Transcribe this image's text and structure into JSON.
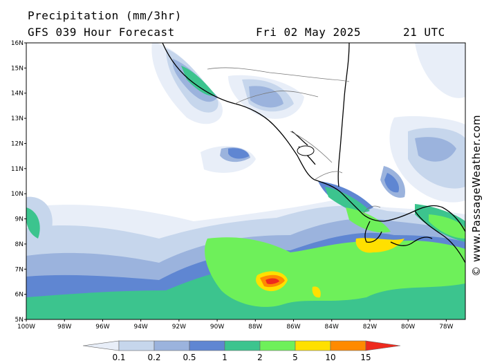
{
  "header": {
    "title": "Precipitation (mm/3hr)",
    "subtitle": "GFS 039 Hour Forecast",
    "date": "Fri 02 May 2025",
    "time": "21 UTC"
  },
  "watermark": "© www.PassageWeather.com",
  "map": {
    "lon_range": [
      -100,
      -77
    ],
    "lat_range": [
      5,
      16
    ],
    "lat_ticks": [
      "16N",
      "15N",
      "14N",
      "13N",
      "12N",
      "11N",
      "10N",
      "9N",
      "8N",
      "7N",
      "6N",
      "5N"
    ],
    "lon_ticks": [
      "100W",
      "98W",
      "96W",
      "94W",
      "92W",
      "90W",
      "88W",
      "86W",
      "84W",
      "82W",
      "80W",
      "78W"
    ]
  },
  "colorbar": {
    "labels": [
      "0.1",
      "0.2",
      "0.5",
      "1",
      "2",
      "5",
      "10",
      "15"
    ],
    "colors": [
      "#e8eef8",
      "#c6d6ec",
      "#9bb3dd",
      "#5f86d2",
      "#3cc48e",
      "#6ef05a",
      "#ffe000",
      "#ff8a00",
      "#ee2a1e"
    ]
  },
  "colors": {
    "coastline": "#000000",
    "border": "#777777"
  }
}
